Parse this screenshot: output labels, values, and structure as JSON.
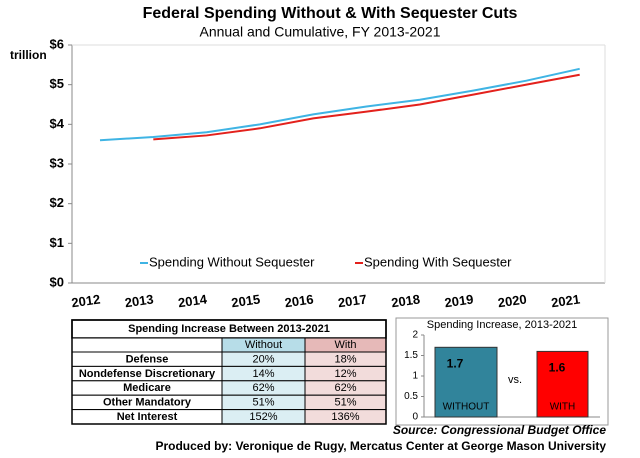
{
  "chart_data": [
    {
      "type": "line",
      "title": "Federal Spending Without & With Sequester Cuts",
      "subtitle": "Annual and Cumulative, FY 2013-2021",
      "y_label": "trillion",
      "categories": [
        "2012",
        "2013",
        "2014",
        "2015",
        "2016",
        "2017",
        "2018",
        "2019",
        "2020",
        "2021"
      ],
      "series": [
        {
          "name": "Spending Without Sequester",
          "color": "#3fb4e4",
          "values": [
            3.6,
            3.68,
            3.8,
            4.0,
            4.25,
            4.45,
            4.62,
            4.85,
            5.1,
            5.4
          ]
        },
        {
          "name": "Spending With Sequester",
          "color": "#e3211c",
          "values": [
            null,
            3.62,
            3.72,
            3.9,
            4.15,
            4.32,
            4.5,
            4.75,
            5.0,
            5.25
          ]
        }
      ],
      "ylim": [
        0,
        6
      ],
      "yticks": [
        {
          "value": 0,
          "label": "$0"
        },
        {
          "value": 1,
          "label": "$1"
        },
        {
          "value": 2,
          "label": "$2"
        },
        {
          "value": 3,
          "label": "$3"
        },
        {
          "value": 4,
          "label": "$4"
        },
        {
          "value": 5,
          "label": "$5"
        },
        {
          "value": 6,
          "label": "$6"
        }
      ],
      "legend": "bottom"
    },
    {
      "type": "bar",
      "title": "Spending Increase, 2013-2021",
      "annotation": "vs.",
      "categories": [
        "WITHOUT",
        "WITH"
      ],
      "values": [
        1.7,
        1.6
      ],
      "colors": [
        "#31849b",
        "#ff0000"
      ],
      "ylim": [
        0,
        2
      ],
      "yticks": [
        0,
        0.5,
        1,
        1.5,
        2
      ]
    }
  ],
  "table": {
    "title": "Spending Increase Between 2013-2021",
    "columns": [
      "Without",
      "With"
    ],
    "rows": [
      [
        "Defense",
        "20%",
        "18%"
      ],
      [
        "Nondefense Discretionary",
        "14%",
        "12%"
      ],
      [
        "Medicare",
        "62%",
        "62%"
      ],
      [
        "Other Mandatory",
        "51%",
        "51%"
      ],
      [
        "Net Interest",
        "152%",
        "136%"
      ]
    ]
  },
  "footer": {
    "source": "Source: Congressional Budget Office",
    "credit": "Produced by: Veronique de Rugy, Mercatus Center at George Mason University"
  }
}
